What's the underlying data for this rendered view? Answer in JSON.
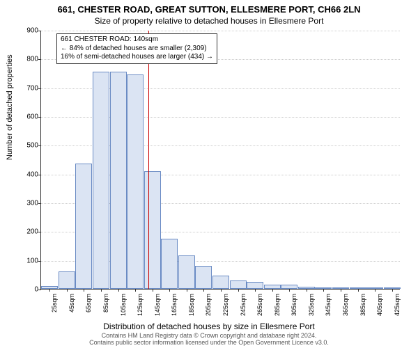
{
  "title_main": "661, CHESTER ROAD, GREAT SUTTON, ELLESMERE PORT, CH66 2LN",
  "title_sub": "Size of property relative to detached houses in Ellesmere Port",
  "y_axis_label": "Number of detached properties",
  "x_axis_label": "Distribution of detached houses by size in Ellesmere Port",
  "footer_line1": "Contains HM Land Registry data © Crown copyright and database right 2024.",
  "footer_line2": "Contains public sector information licensed under the Open Government Licence v3.0.",
  "chart": {
    "ylim": [
      0,
      900
    ],
    "ytick_step": 100,
    "x_categories": [
      "25sqm",
      "45sqm",
      "65sqm",
      "85sqm",
      "105sqm",
      "125sqm",
      "145sqm",
      "165sqm",
      "185sqm",
      "205sqm",
      "225sqm",
      "245sqm",
      "265sqm",
      "285sqm",
      "305sqm",
      "325sqm",
      "345sqm",
      "365sqm",
      "385sqm",
      "405sqm",
      "425sqm"
    ],
    "values": [
      10,
      60,
      435,
      755,
      755,
      745,
      410,
      175,
      115,
      80,
      45,
      30,
      25,
      15,
      15,
      8,
      5,
      4,
      3,
      3,
      3
    ],
    "bar_fill": "#dbe4f3",
    "bar_stroke": "#6a8bc4",
    "grid_color": "#cccccc",
    "ref_value_sqm": 140,
    "ref_color": "#cc0000",
    "callout": {
      "line1": "661 CHESTER ROAD: 140sqm",
      "line2": "← 84% of detached houses are smaller (2,309)",
      "line3": "16% of semi-detached houses are larger (434) →"
    }
  }
}
